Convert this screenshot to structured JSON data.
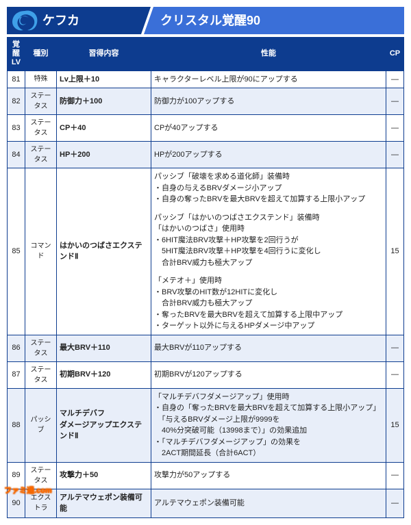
{
  "header": {
    "characterName": "ケフカ",
    "title": "クリスタル覚醒90"
  },
  "columns": {
    "lv": "覚醒\nLV",
    "type": "種別",
    "name": "習得内容",
    "desc": "性能",
    "cp": "CP"
  },
  "rows": [
    {
      "lv": "81",
      "type": "特殊",
      "name": "Lv上限＋10",
      "desc": [
        [
          "キャラクターレベル上限が90にアップする"
        ]
      ],
      "cp": "—"
    },
    {
      "lv": "82",
      "type": "ステータス",
      "name": "防御力＋100",
      "desc": [
        [
          "防御力が100アップする"
        ]
      ],
      "cp": "—"
    },
    {
      "lv": "83",
      "type": "ステータス",
      "name": "CP＋40",
      "desc": [
        [
          "CPが40アップする"
        ]
      ],
      "cp": "—"
    },
    {
      "lv": "84",
      "type": "ステータス",
      "name": "HP＋200",
      "desc": [
        [
          "HPが200アップする"
        ]
      ],
      "cp": "—"
    },
    {
      "lv": "85",
      "type": "コマンド",
      "name": "はかいのつばさエクステンドⅡ",
      "desc": [
        [
          "パッシブ「破壊を求める道化師」装備時",
          "・自身の与えるBRVダメージ小アップ",
          "・自身の奪ったBRVを最大BRVを超えて加算する上限小アップ"
        ],
        [
          "パッシブ「はかいのつばさエクステンド」装備時",
          "「はかいのつばさ」使用時",
          "・6HIT魔法BRV攻撃＋HP攻撃を2回行うが",
          "　5HIT魔法BRV攻撃＋HP攻撃を4回行うに変化し",
          "　合計BRV威力も極大アップ"
        ],
        [
          "「メテオ＋」使用時",
          "・BRV攻撃のHIT数が12HITに変化し",
          "　合計BRV威力も極大アップ",
          "・奪ったBRVを最大BRVを超えて加算する上限中アップ",
          "・ターゲット以外に与えるHPダメージ中アップ"
        ]
      ],
      "cp": "15"
    },
    {
      "lv": "86",
      "type": "ステータス",
      "name": "最大BRV＋110",
      "desc": [
        [
          "最大BRVが110アップする"
        ]
      ],
      "cp": "—"
    },
    {
      "lv": "87",
      "type": "ステータス",
      "name": "初期BRV＋120",
      "desc": [
        [
          "初期BRVが120アップする"
        ]
      ],
      "cp": "—"
    },
    {
      "lv": "88",
      "type": "パッシブ",
      "name": "マルチデバフ\nダメージアップエクステンドⅡ",
      "desc": [
        [
          "「マルチデバフダメージアップ」使用時",
          "・自身の「奪ったBRVを最大BRVを超えて加算する上限小アップ」",
          "　「与えるBRVダメージ上限が9999を",
          "　40%分突破可能（13998まで）」の効果追加",
          "・「マルチデバフダメージアップ」の効果を",
          "　2ACT期間延長（合計6ACT）"
        ]
      ],
      "cp": "15"
    },
    {
      "lv": "89",
      "type": "ステータス",
      "name": "攻撃力＋50",
      "desc": [
        [
          "攻撃力が50アップする"
        ]
      ],
      "cp": "—"
    },
    {
      "lv": "90",
      "type": "エクストラ",
      "name": "アルテマウェポン装備可能",
      "desc": [
        [
          "アルテマウェポン装備可能"
        ]
      ],
      "cp": "—"
    }
  ],
  "watermark": "ファミ通.com"
}
